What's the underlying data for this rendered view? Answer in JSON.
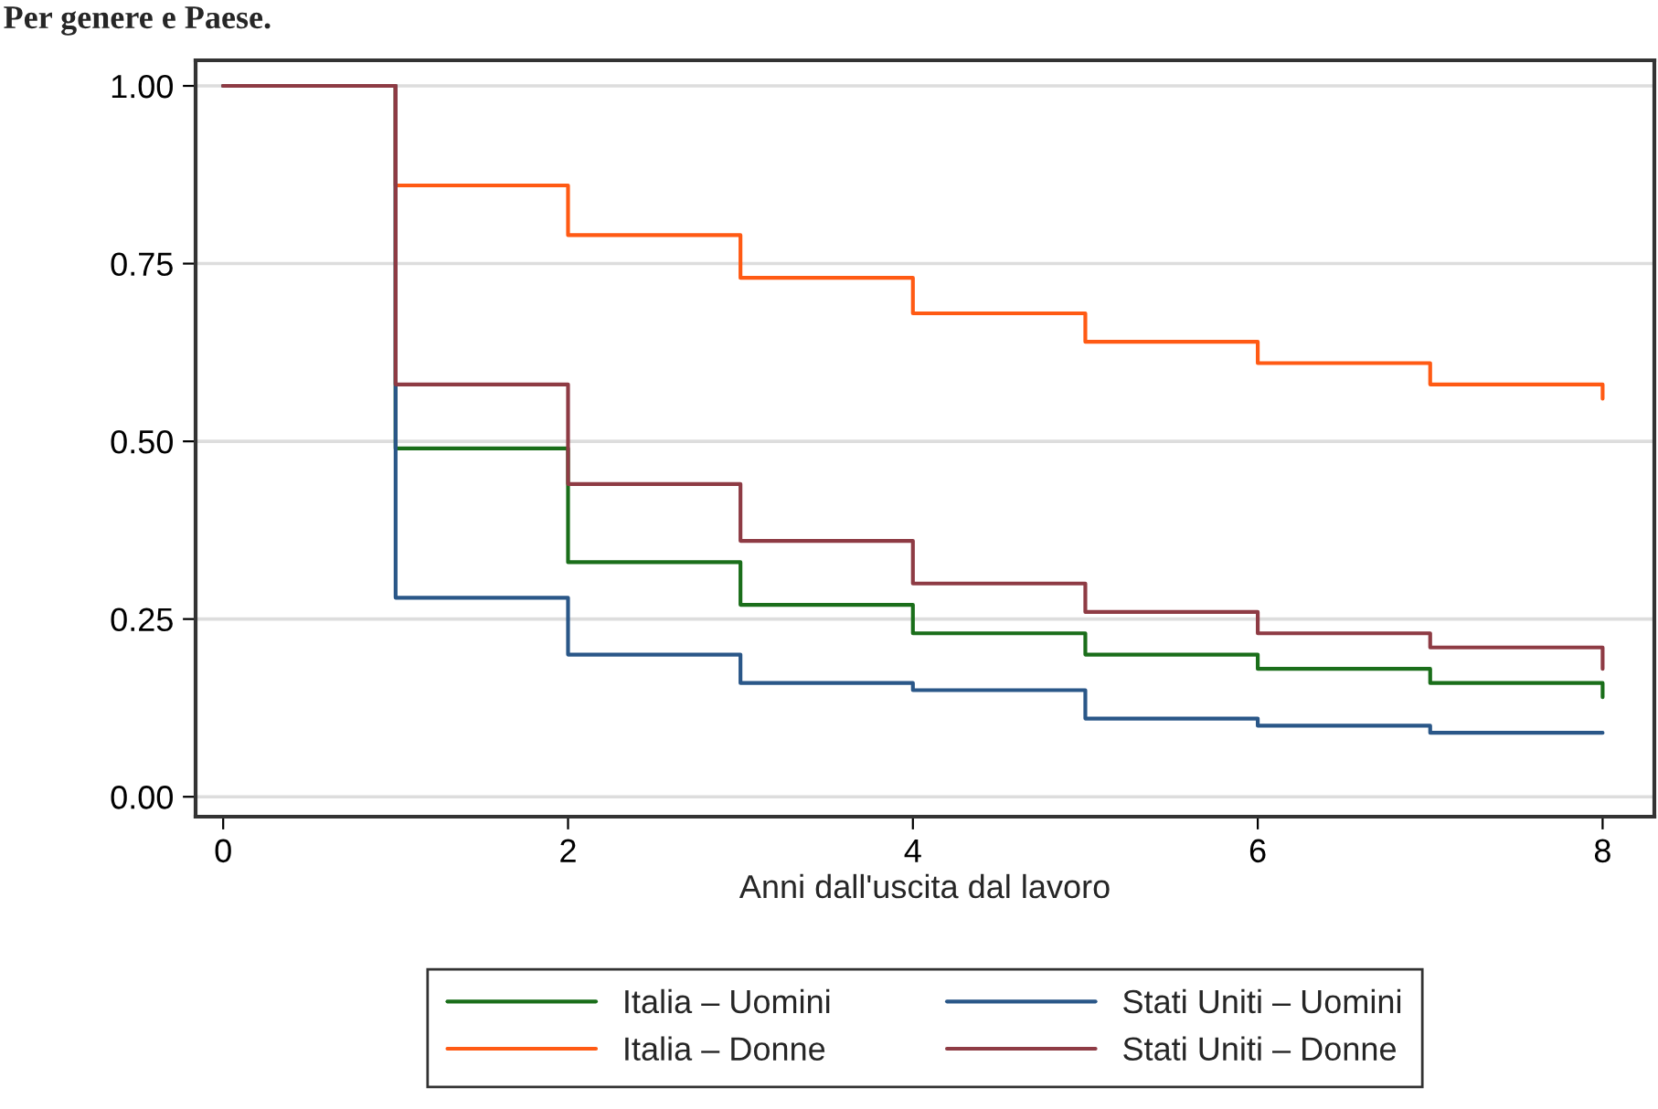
{
  "chart_data": {
    "type": "step",
    "title": "Per genere e Paese.",
    "xlabel": "Anni dall'uscita dal lavoro",
    "x": [
      0,
      1,
      2,
      3,
      4,
      5,
      6,
      7,
      8
    ],
    "series": [
      {
        "name": "Italia – Uomini",
        "color": "#1a6e1a",
        "values": [
          1.0,
          0.49,
          0.33,
          0.27,
          0.23,
          0.2,
          0.18,
          0.16,
          0.14
        ]
      },
      {
        "name": "Italia – Donne",
        "color": "#ff5a14",
        "values": [
          1.0,
          0.86,
          0.79,
          0.73,
          0.68,
          0.64,
          0.61,
          0.58,
          0.56
        ]
      },
      {
        "name": "Stati Uniti – Uomini",
        "color": "#2a5788",
        "values": [
          1.0,
          0.28,
          0.2,
          0.16,
          0.15,
          0.11,
          0.1,
          0.09,
          0.09
        ]
      },
      {
        "name": "Stati Uniti – Donne",
        "color": "#8e3b44",
        "values": [
          1.0,
          0.58,
          0.44,
          0.36,
          0.3,
          0.26,
          0.23,
          0.21,
          0.18
        ]
      }
    ],
    "xlim": [
      -0.16,
      8.3
    ],
    "ylim": [
      -0.028,
      1.036
    ],
    "xticks": [
      0,
      2,
      4,
      6,
      8
    ],
    "yticks": [
      {
        "value": 0,
        "label": "0.00"
      },
      {
        "value": 0.25,
        "label": "0.25"
      },
      {
        "value": 0.5,
        "label": "0.50"
      },
      {
        "value": 0.75,
        "label": "0.75"
      },
      {
        "value": 1,
        "label": "1.00"
      }
    ],
    "grid": "y",
    "legend": "bottom",
    "line_style": "solid"
  }
}
